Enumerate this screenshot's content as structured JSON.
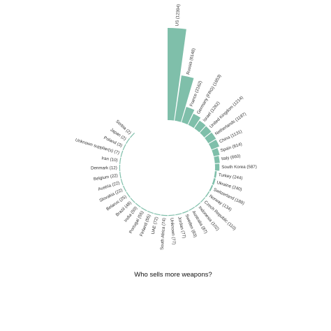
{
  "chart_data": {
    "type": "bar",
    "subtype": "circular-barplot",
    "title": "Who sells more weapons?",
    "bar_color": "#7fbfaa",
    "categories": [
      "US (12394)",
      "Russia (6148)",
      "France (2162)",
      "Germany (FRG) (1653)",
      "Israel (1262)",
      "United Kingdom (1214)",
      "Netherlands (1187)",
      "China (1131)",
      "Spain (814)",
      "Italy (660)",
      "South Korea (587)",
      "Turkey (244)",
      "Ukraine (240)",
      "Switzerland (188)",
      "Norway (134)",
      "Czech Republic (110)",
      "Indonesia (102)",
      "Australia (87)",
      "Sweden (83)",
      "Jordan (77)",
      "Unknown (77)",
      "South Africa (74)",
      "UAE (72)",
      "Finland (55)",
      "Portugal (55)",
      "India (50)",
      "Brazil (48)",
      "Belarus (25)",
      "Slovakia (22)",
      "Austria (22)",
      "Belgium (22)",
      "Denmark (12)",
      "Iran (10)",
      "Unknown supplier(s) (7)",
      "Poland (3)",
      "Japan (2)",
      "Serbia (2)"
    ],
    "values": [
      12394,
      6148,
      2162,
      1653,
      1262,
      1214,
      1187,
      1131,
      814,
      660,
      587,
      244,
      240,
      188,
      134,
      110,
      102,
      87,
      83,
      77,
      77,
      74,
      72,
      55,
      55,
      50,
      48,
      25,
      22,
      22,
      22,
      12,
      10,
      7,
      3,
      2,
      2
    ]
  }
}
